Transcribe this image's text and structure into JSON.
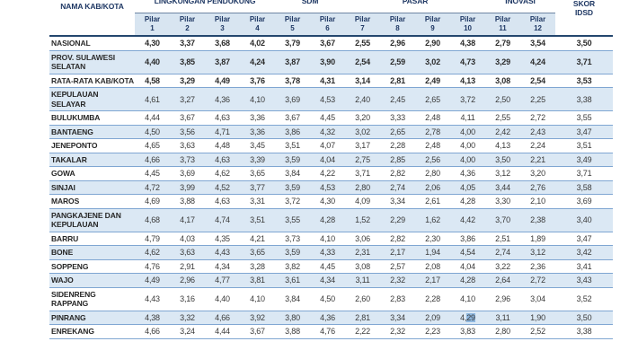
{
  "table": {
    "name_header": "NAMA KAB/KOTA",
    "skor_header": [
      "SKOR",
      "IDSD"
    ],
    "groups": [
      {
        "label": "LINGKUNGAN PENDUKUNG",
        "span": 4
      },
      {
        "label": "SDM",
        "span": 2
      },
      {
        "label": "PASAR",
        "span": 4
      },
      {
        "label": "INOVASI",
        "span": 2
      }
    ],
    "pilar_prefix": "Pilar",
    "pilar_numbers": [
      "1",
      "2",
      "3",
      "4",
      "5",
      "6",
      "7",
      "8",
      "9",
      "10",
      "11",
      "12"
    ],
    "selection": {
      "row_index": 17,
      "col_index": 9,
      "before": "4,",
      "highlighted": "29"
    },
    "rows": [
      {
        "name": "NASIONAL",
        "bold": true,
        "values": [
          "4,30",
          "3,37",
          "3,68",
          "4,02",
          "3,79",
          "3,67",
          "2,55",
          "2,96",
          "2,90",
          "4,38",
          "2,79",
          "3,54"
        ],
        "skor": "3,50"
      },
      {
        "name": "PROV. SULAWESI SELATAN",
        "bold": true,
        "values": [
          "4,40",
          "3,85",
          "3,87",
          "4,24",
          "3,87",
          "3,90",
          "2,54",
          "2,59",
          "3,02",
          "4,73",
          "3,29",
          "4,24"
        ],
        "skor": "3,71"
      },
      {
        "name": "RATA-RATA KAB/KOTA",
        "bold": true,
        "values": [
          "4,58",
          "3,29",
          "4,49",
          "3,76",
          "3,78",
          "4,31",
          "3,14",
          "2,81",
          "2,49",
          "4,13",
          "3,08",
          "2,54"
        ],
        "skor": "3,53"
      },
      {
        "name": "KEPULAUAN SELAYAR",
        "bold": false,
        "values": [
          "4,61",
          "3,27",
          "4,36",
          "4,10",
          "3,69",
          "4,53",
          "2,40",
          "2,45",
          "2,65",
          "3,72",
          "2,50",
          "2,25"
        ],
        "skor": "3,38"
      },
      {
        "name": "BULUKUMBA",
        "bold": false,
        "values": [
          "4,44",
          "3,67",
          "4,63",
          "3,36",
          "3,67",
          "4,45",
          "3,20",
          "3,33",
          "2,48",
          "4,11",
          "2,55",
          "2,72"
        ],
        "skor": "3,55"
      },
      {
        "name": "BANTAENG",
        "bold": false,
        "values": [
          "4,50",
          "3,56",
          "4,71",
          "3,36",
          "3,86",
          "4,32",
          "3,02",
          "2,65",
          "2,78",
          "4,00",
          "2,42",
          "2,43"
        ],
        "skor": "3,47"
      },
      {
        "name": "JENEPONTO",
        "bold": false,
        "values": [
          "4,65",
          "3,63",
          "4,48",
          "3,45",
          "3,51",
          "4,07",
          "3,17",
          "2,28",
          "2,48",
          "4,00",
          "4,13",
          "2,24"
        ],
        "skor": "3,51"
      },
      {
        "name": "TAKALAR",
        "bold": false,
        "values": [
          "4,66",
          "3,73",
          "4,63",
          "3,39",
          "3,59",
          "4,04",
          "2,75",
          "2,85",
          "2,56",
          "4,00",
          "3,50",
          "2,21"
        ],
        "skor": "3,49"
      },
      {
        "name": "GOWA",
        "bold": false,
        "values": [
          "4,45",
          "3,69",
          "4,62",
          "3,65",
          "3,84",
          "4,22",
          "3,71",
          "2,82",
          "2,80",
          "4,36",
          "3,12",
          "3,20"
        ],
        "skor": "3,71"
      },
      {
        "name": "SINJAI",
        "bold": false,
        "values": [
          "4,72",
          "3,99",
          "4,52",
          "3,77",
          "3,59",
          "4,53",
          "2,80",
          "2,74",
          "2,06",
          "4,05",
          "3,44",
          "2,76"
        ],
        "skor": "3,58"
      },
      {
        "name": "MAROS",
        "bold": false,
        "values": [
          "4,69",
          "3,88",
          "4,63",
          "3,31",
          "3,72",
          "4,30",
          "4,09",
          "3,34",
          "2,61",
          "4,28",
          "3,30",
          "2,10"
        ],
        "skor": "3,69"
      },
      {
        "name": "PANGKAJENE DAN KEPULAUAN",
        "bold": false,
        "values": [
          "4,68",
          "4,17",
          "4,74",
          "3,51",
          "3,55",
          "4,28",
          "1,52",
          "2,29",
          "1,62",
          "4,42",
          "3,70",
          "2,38"
        ],
        "skor": "3,40"
      },
      {
        "name": "BARRU",
        "bold": false,
        "values": [
          "4,79",
          "4,03",
          "4,35",
          "4,21",
          "3,73",
          "4,10",
          "3,06",
          "2,82",
          "2,30",
          "3,86",
          "2,51",
          "1,89"
        ],
        "skor": "3,47"
      },
      {
        "name": "BONE",
        "bold": false,
        "values": [
          "4,62",
          "3,63",
          "4,43",
          "3,65",
          "3,59",
          "4,33",
          "2,31",
          "2,17",
          "1,94",
          "4,54",
          "2,74",
          "3,12"
        ],
        "skor": "3,42"
      },
      {
        "name": "SOPPENG",
        "bold": false,
        "values": [
          "4,76",
          "2,91",
          "4,34",
          "3,28",
          "3,82",
          "4,45",
          "3,08",
          "2,57",
          "2,08",
          "4,04",
          "3,22",
          "2,36"
        ],
        "skor": "3,41"
      },
      {
        "name": "WAJO",
        "bold": false,
        "values": [
          "4,49",
          "2,96",
          "4,77",
          "3,81",
          "3,61",
          "4,34",
          "3,11",
          "2,32",
          "2,17",
          "4,28",
          "2,64",
          "2,72"
        ],
        "skor": "3,43"
      },
      {
        "name": "SIDENRENG RAPPANG",
        "bold": false,
        "values": [
          "4,43",
          "3,16",
          "4,40",
          "4,10",
          "3,84",
          "4,50",
          "2,60",
          "2,83",
          "2,28",
          "4,10",
          "2,96",
          "3,04"
        ],
        "skor": "3,52"
      },
      {
        "name": "PINRANG",
        "bold": false,
        "values": [
          "4,38",
          "3,32",
          "4,66",
          "3,92",
          "3,80",
          "4,36",
          "2,81",
          "3,34",
          "2,09",
          "4,29",
          "3,11",
          "1,90"
        ],
        "skor": "3,50"
      },
      {
        "name": "ENREKANG",
        "bold": false,
        "values": [
          "4,66",
          "3,24",
          "4,44",
          "3,67",
          "3,88",
          "4,76",
          "2,22",
          "2,32",
          "2,23",
          "3,83",
          "2,80",
          "2,52"
        ],
        "skor": "3,38"
      }
    ]
  }
}
